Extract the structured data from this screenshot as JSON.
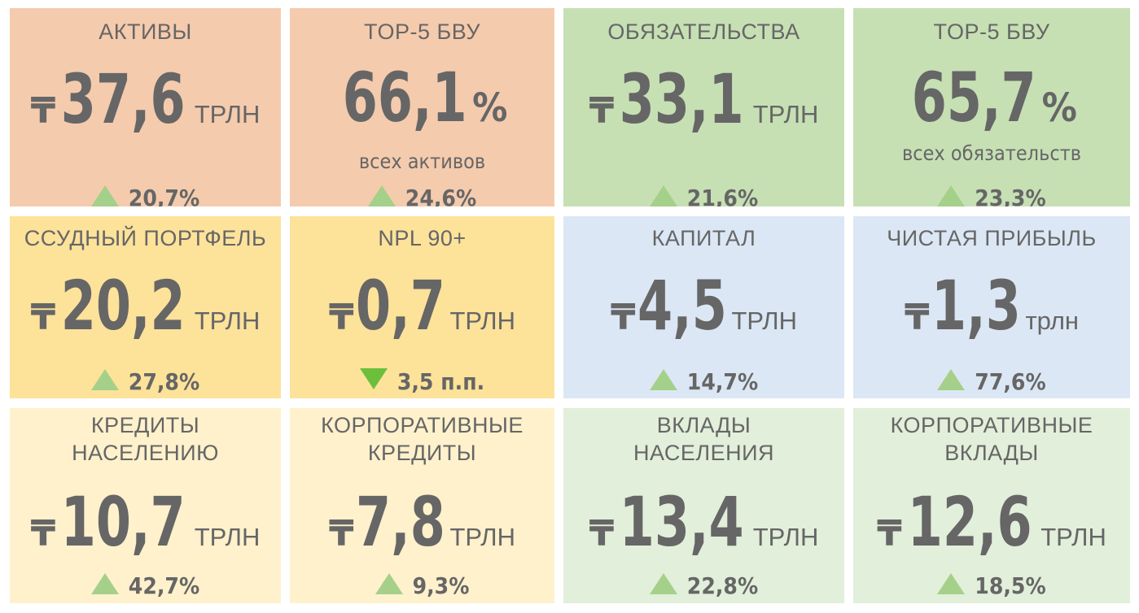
{
  "colors": {
    "orange": "#f5cbad",
    "gold": "#fde29a",
    "light_yellow": "#fff1cc",
    "green": "#c6e0b4",
    "light_green": "#e2efda",
    "blue": "#dce7f5",
    "up_triangle": "#a5d08a",
    "down_triangle": "#6cbf3c",
    "text": "#666666"
  },
  "currency_symbol": "₸",
  "tiles": [
    {
      "title": "АКТИВЫ",
      "value": "37,6",
      "unit": "ТРЛН",
      "change": "20,7%",
      "direction": "up",
      "color": "orange"
    },
    {
      "title": "TOP-5 БВУ",
      "value": "66,1",
      "pct": "%",
      "sub": "всех активов",
      "change": "24,6%",
      "direction": "up",
      "color": "orange"
    },
    {
      "title": "ОБЯЗАТЕЛЬСТВА",
      "value": "33,1",
      "unit": "ТРЛН",
      "change": "21,6%",
      "direction": "up",
      "color": "green"
    },
    {
      "title": "TOP-5 БВУ",
      "value": "65,7",
      "pct": "%",
      "sub": "всех обязательств",
      "change": "23,3%",
      "direction": "up",
      "color": "green"
    },
    {
      "title": "ССУДНЫЙ ПОРТФЕЛЬ",
      "value": "20,2",
      "unit": "ТРЛН",
      "change": "27,8%",
      "direction": "up",
      "color": "gold"
    },
    {
      "title": "NPL 90+",
      "value": "0,7",
      "unit": "ТРЛН",
      "change": "3,5 п.п.",
      "direction": "down",
      "color": "gold"
    },
    {
      "title": "КАПИТАЛ",
      "value": "4,5",
      "unit": "ТРЛН",
      "change": "14,7%",
      "direction": "up",
      "color": "blue"
    },
    {
      "title": "ЧИСТАЯ ПРИБЫЛЬ",
      "value": "1,3",
      "unit": "трлн",
      "change": "77,6%",
      "direction": "up",
      "color": "blue"
    },
    {
      "title1": "КРЕДИТЫ",
      "title2": "НАСЕЛЕНИЮ",
      "value": "10,7",
      "unit": "ТРЛН",
      "change": "42,7%",
      "direction": "up",
      "color": "light_yellow"
    },
    {
      "title1": "КОРПОРАТИВНЫЕ",
      "title2": "КРЕДИТЫ",
      "value": "7,8",
      "unit": "ТРЛН",
      "change": "9,3%",
      "direction": "up",
      "color": "light_yellow"
    },
    {
      "title1": "ВКЛАДЫ",
      "title2": "НАСЕЛЕНИЯ",
      "value": "13,4",
      "unit": "ТРЛН",
      "change": "22,8%",
      "direction": "up",
      "color": "light_green"
    },
    {
      "title1": "КОРПОРАТИВНЫЕ",
      "title2": "ВКЛАДЫ",
      "value": "12,6",
      "unit": "ТРЛН",
      "change": "18,5%",
      "direction": "up",
      "color": "light_green"
    }
  ]
}
